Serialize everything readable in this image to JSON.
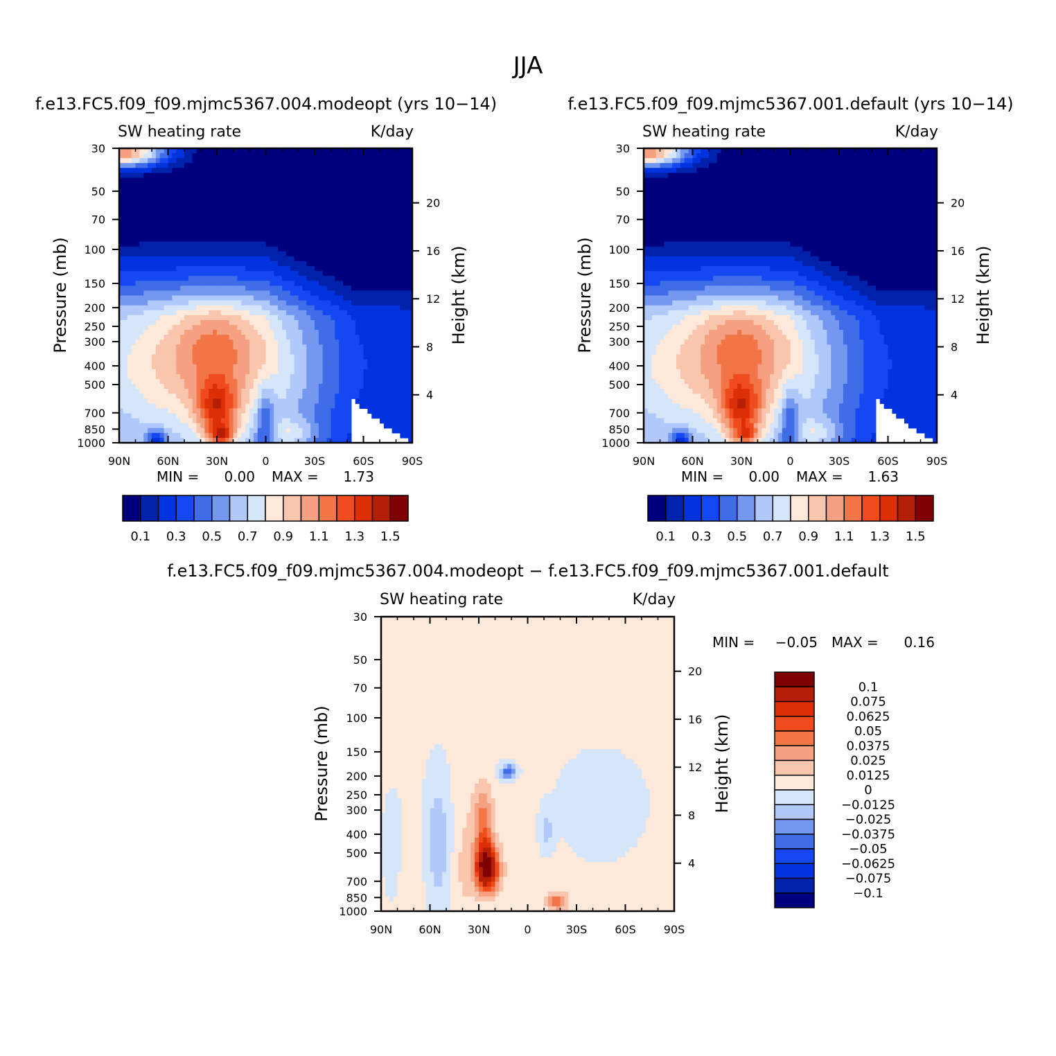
{
  "title": "JJA",
  "colors": {
    "abs": [
      "#00007f",
      "#0022aa",
      "#0033dd",
      "#1547f2",
      "#3f6de8",
      "#7498f0",
      "#b0c9fa",
      "#d5e6fb",
      "#fde8d9",
      "#f9c5ad",
      "#f5a080",
      "#f27548",
      "#ef4b1c",
      "#dd2f05",
      "#b51f06",
      "#7e0000"
    ],
    "diff": [
      "#00007f",
      "#0022aa",
      "#0033dd",
      "#1547f2",
      "#3f6de8",
      "#7498f0",
      "#b0c9fa",
      "#d5e6fb",
      "#fde8d9",
      "#f9c5ad",
      "#f5a080",
      "#f27548",
      "#ef4b1c",
      "#dd2f05",
      "#b51f06",
      "#7e0000"
    ]
  },
  "chart_data": [
    {
      "type": "contour",
      "title": "f.e13.FC5.f09_f09.mjmc5367.004.modeopt (yrs 10−14)",
      "subtitle_left": "SW heating rate",
      "subtitle_right": "K/day",
      "xlabel": "",
      "ylabel": "Pressure (mb)",
      "ylabel_right": "Height (km)",
      "x_ticks": [
        "90N",
        "60N",
        "30N",
        "0",
        "30S",
        "60S",
        "90S"
      ],
      "x_range": [
        90,
        -90
      ],
      "y_ticks": [
        30,
        50,
        70,
        100,
        150,
        200,
        250,
        300,
        400,
        500,
        700,
        850,
        1000
      ],
      "y_range_mb": [
        30,
        1000
      ],
      "height_ticks_km": [
        20,
        16,
        12,
        8,
        4
      ],
      "min_label": "MIN =",
      "min_value": "0.00",
      "max_label": "MAX =",
      "max_value": "1.73",
      "levels": [
        0.1,
        0.2,
        0.3,
        0.4,
        0.5,
        0.6,
        0.7,
        0.8,
        0.9,
        1.0,
        1.1,
        1.2,
        1.3,
        1.4,
        1.5
      ],
      "colorbar_labels": [
        "0.1",
        "0.3",
        "0.5",
        "0.7",
        "0.9",
        "1.1",
        "1.3",
        "1.5"
      ]
    },
    {
      "type": "contour",
      "title": "f.e13.FC5.f09_f09.mjmc5367.001.default (yrs 10−14)",
      "subtitle_left": "SW heating rate",
      "subtitle_right": "K/day",
      "ylabel": "Pressure (mb)",
      "ylabel_right": "Height (km)",
      "x_ticks": [
        "90N",
        "60N",
        "30N",
        "0",
        "30S",
        "60S",
        "90S"
      ],
      "x_range": [
        90,
        -90
      ],
      "y_ticks": [
        30,
        50,
        70,
        100,
        150,
        200,
        250,
        300,
        400,
        500,
        700,
        850,
        1000
      ],
      "y_range_mb": [
        30,
        1000
      ],
      "height_ticks_km": [
        20,
        16,
        12,
        8,
        4
      ],
      "min_label": "MIN =",
      "min_value": "0.00",
      "max_label": "MAX =",
      "max_value": "1.63",
      "levels": [
        0.1,
        0.2,
        0.3,
        0.4,
        0.5,
        0.6,
        0.7,
        0.8,
        0.9,
        1.0,
        1.1,
        1.2,
        1.3,
        1.4,
        1.5
      ],
      "colorbar_labels": [
        "0.1",
        "0.3",
        "0.5",
        "0.7",
        "0.9",
        "1.1",
        "1.3",
        "1.5"
      ]
    },
    {
      "type": "contour",
      "title": "f.e13.FC5.f09_f09.mjmc5367.004.modeopt − f.e13.FC5.f09_f09.mjmc5367.001.default",
      "subtitle_left": "SW heating rate",
      "subtitle_right": "K/day",
      "ylabel": "Pressure (mb)",
      "ylabel_right": "Height (km)",
      "x_ticks": [
        "90N",
        "60N",
        "30N",
        "0",
        "30S",
        "60S",
        "90S"
      ],
      "x_range": [
        90,
        -90
      ],
      "y_ticks": [
        30,
        50,
        70,
        100,
        150,
        200,
        250,
        300,
        400,
        500,
        700,
        850,
        1000
      ],
      "y_range_mb": [
        30,
        1000
      ],
      "height_ticks_km": [
        20,
        16,
        12,
        8,
        4
      ],
      "min_label": "MIN =",
      "min_value": "−0.05",
      "max_label": "MAX =",
      "max_value": "0.16",
      "levels": [
        -0.1,
        -0.075,
        -0.0625,
        -0.05,
        -0.0375,
        -0.025,
        -0.0125,
        0,
        0.0125,
        0.025,
        0.0375,
        0.05,
        0.0625,
        0.075,
        0.1
      ],
      "colorbar_labels": [
        "0.1",
        "0.075",
        "0.0625",
        "0.05",
        "0.0375",
        "0.025",
        "0.0125",
        "0",
        "−0.0125",
        "−0.025",
        "−0.0375",
        "−0.05",
        "−0.0625",
        "−0.075",
        "−0.1"
      ]
    }
  ]
}
